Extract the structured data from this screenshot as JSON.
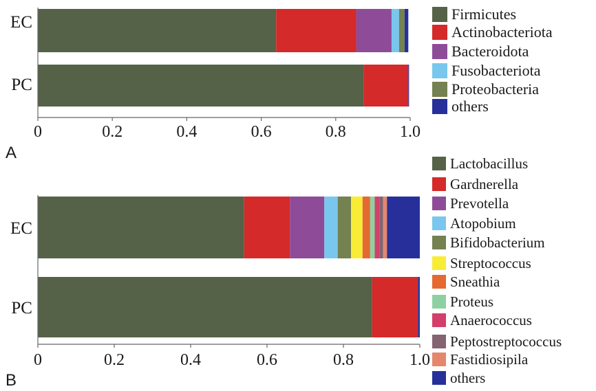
{
  "chart_data": [
    {
      "type": "bar",
      "orientation": "horizontal",
      "stacked": true,
      "panel_label": "A",
      "categories": [
        "EC",
        "PC"
      ],
      "xlim": [
        0,
        1.0
      ],
      "xticks": [
        "0",
        "0.2",
        "0.4",
        "0.6",
        "0.8",
        "1.0"
      ],
      "grid": false,
      "legend_position": "right",
      "series": [
        {
          "name": "Firmicutes",
          "color": "#556248",
          "values": [
            0.64,
            0.875
          ]
        },
        {
          "name": "Actinobacteriota",
          "color": "#d42a2a",
          "values": [
            0.215,
            0.12
          ]
        },
        {
          "name": "Bacteroidota",
          "color": "#8e4c98",
          "values": [
            0.095,
            0.0
          ]
        },
        {
          "name": "Fusobacteriota",
          "color": "#79c7ee",
          "values": [
            0.02,
            0.0
          ]
        },
        {
          "name": "Proteobacteria",
          "color": "#748150",
          "values": [
            0.015,
            0.0
          ]
        },
        {
          "name": "others",
          "color": "#27309a",
          "values": [
            0.01,
            0.002
          ]
        }
      ]
    },
    {
      "type": "bar",
      "orientation": "horizontal",
      "stacked": true,
      "panel_label": "B",
      "categories": [
        "EC",
        "PC"
      ],
      "xlim": [
        0,
        1.0
      ],
      "xticks": [
        "0",
        "0.2",
        "0.4",
        "0.6",
        "0.8",
        "1.0"
      ],
      "grid": false,
      "legend_position": "right",
      "series": [
        {
          "name": "Lactobacillus",
          "color": "#556248",
          "values": [
            0.54,
            0.875
          ]
        },
        {
          "name": "Gardnerella",
          "color": "#d42a2a",
          "values": [
            0.12,
            0.12
          ]
        },
        {
          "name": "Prevotella",
          "color": "#8e4c98",
          "values": [
            0.09,
            0.0
          ]
        },
        {
          "name": "Atopobium",
          "color": "#79c7ee",
          "values": [
            0.035,
            0.0
          ]
        },
        {
          "name": "Bifidobacterium",
          "color": "#748150",
          "values": [
            0.035,
            0.0
          ]
        },
        {
          "name": "Streptococcus",
          "color": "#f9ec37",
          "values": [
            0.03,
            0.0
          ]
        },
        {
          "name": "Sneathia",
          "color": "#e46a32",
          "values": [
            0.02,
            0.0
          ]
        },
        {
          "name": "Proteus",
          "color": "#8fd0a3",
          "values": [
            0.012,
            0.0
          ]
        },
        {
          "name": "Anaerococcus",
          "color": "#d33f6a",
          "values": [
            0.012,
            0.0
          ]
        },
        {
          "name": "Peptostreptococcus",
          "color": "#836470",
          "values": [
            0.01,
            0.0
          ]
        },
        {
          "name": "Fastidiosipila",
          "color": "#e5876d",
          "values": [
            0.01,
            0.0
          ]
        },
        {
          "name": "others",
          "color": "#27309a",
          "values": [
            0.086,
            0.005
          ]
        }
      ]
    }
  ]
}
